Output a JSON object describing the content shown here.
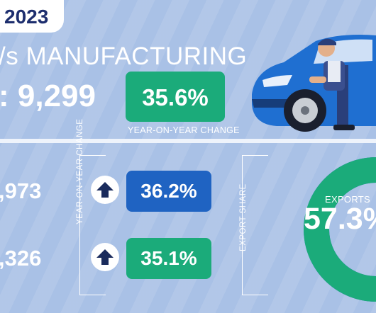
{
  "header": {
    "year": "2023",
    "headline": "/s MANUFACTURING",
    "total_label": ": 9,299"
  },
  "yoy": {
    "value": "35.6%",
    "label": "YEAR-ON-YEAR CHANGE",
    "color": "#1bab7a"
  },
  "breakdown": {
    "axis_label": "YEAR-ON-YEAR CHANGE",
    "rows": [
      {
        "number": ",973",
        "change": "36.2%",
        "color": "#1f63c2"
      },
      {
        "number": ",326",
        "change": "35.1%",
        "color": "#1bab7a"
      }
    ]
  },
  "exports": {
    "axis_label": "EXPORT SHARE",
    "label": "EXPORTS",
    "value": "57.3%",
    "share": 57.3,
    "color_exports": "#1bab7a",
    "color_other": "#1f63c2"
  }
}
